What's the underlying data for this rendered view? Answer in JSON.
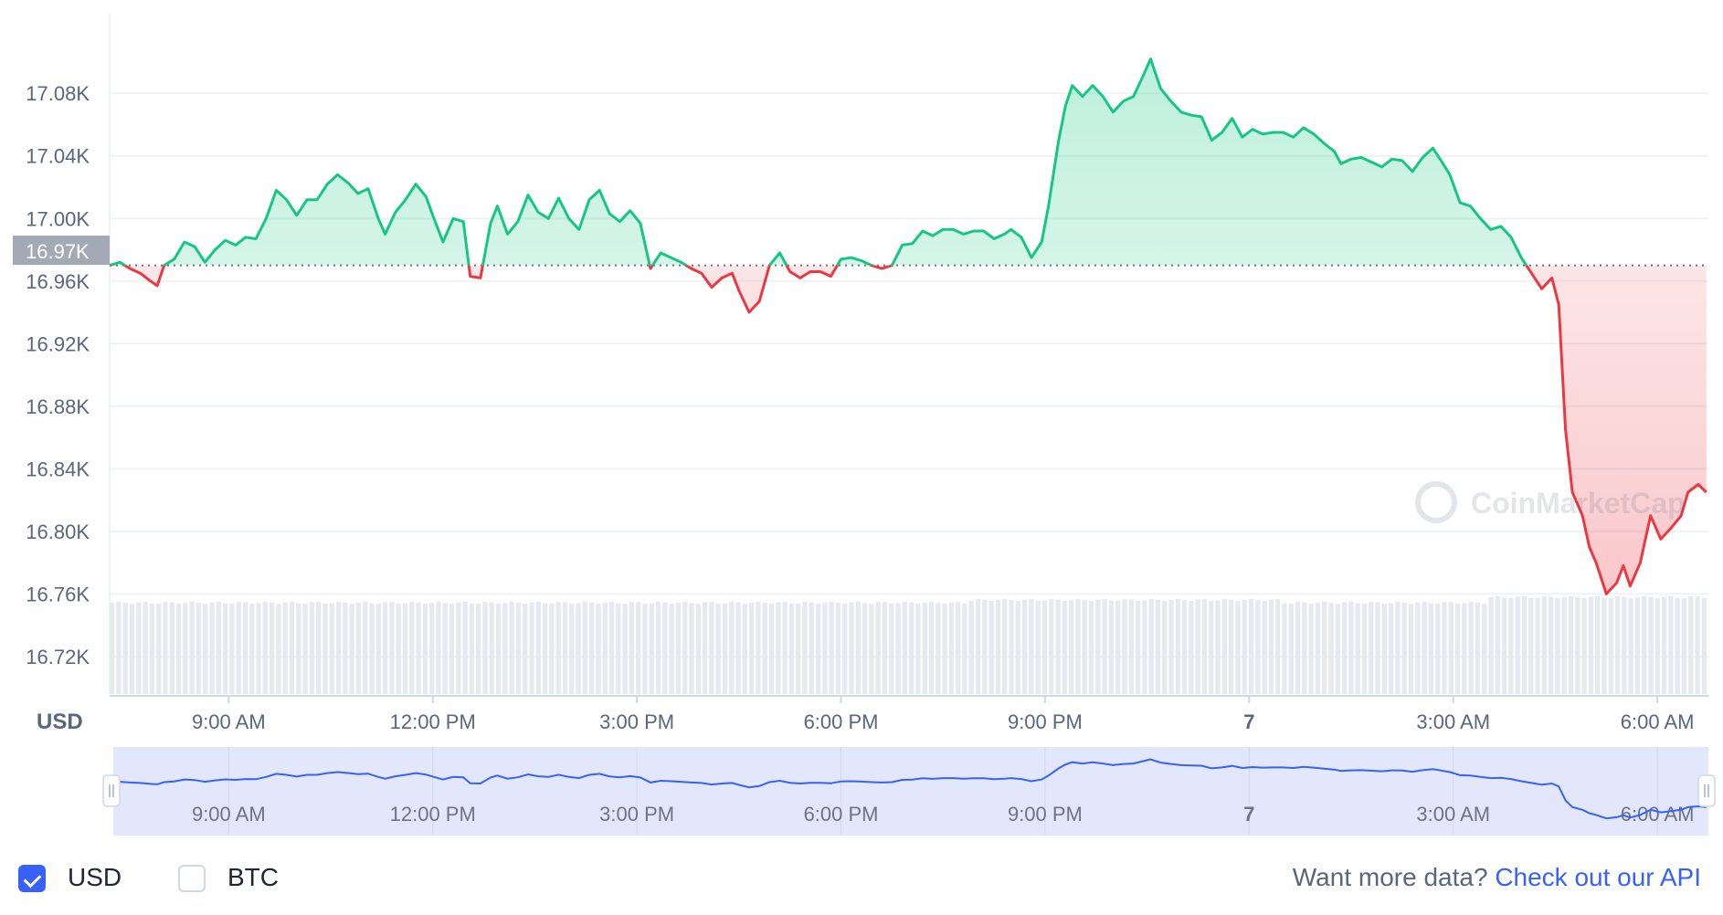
{
  "chart_data": {
    "type": "area",
    "currency_label": "USD",
    "y_ticks": [
      "17.08K",
      "17.04K",
      "17.00K",
      "16.96K",
      "16.92K",
      "16.88K",
      "16.84K",
      "16.80K",
      "16.76K",
      "16.72K"
    ],
    "y_tick_values": [
      17080,
      17040,
      17000,
      16960,
      16920,
      16880,
      16840,
      16800,
      16760,
      16720
    ],
    "ylim": [
      16696,
      17128
    ],
    "x_ticks": [
      "9:00 AM",
      "12:00 PM",
      "3:00 PM",
      "6:00 PM",
      "9:00 PM",
      "7",
      "3:00 AM",
      "6:00 AM"
    ],
    "x_tick_hours": [
      9,
      12,
      15,
      18,
      21,
      24,
      27,
      30
    ],
    "x_tick_bold": [
      false,
      false,
      false,
      false,
      false,
      true,
      false,
      false
    ],
    "xlim_hours": [
      7.25,
      30.75
    ],
    "reference_price": 16970,
    "reference_label": "16.97K",
    "up_color": "#16c784",
    "down_color": "#ea3943",
    "series": [
      {
        "values": [
          [
            7.25,
            16970
          ],
          [
            7.4,
            16972
          ],
          [
            7.55,
            16968
          ],
          [
            7.7,
            16965
          ],
          [
            7.85,
            16960
          ],
          [
            7.95,
            16957
          ],
          [
            8.05,
            16970
          ],
          [
            8.2,
            16974
          ],
          [
            8.35,
            16985
          ],
          [
            8.5,
            16982
          ],
          [
            8.65,
            16972
          ],
          [
            8.8,
            16980
          ],
          [
            8.95,
            16986
          ],
          [
            9.1,
            16983
          ],
          [
            9.25,
            16988
          ],
          [
            9.4,
            16987
          ],
          [
            9.55,
            17000
          ],
          [
            9.7,
            17018
          ],
          [
            9.85,
            17012
          ],
          [
            10.0,
            17002
          ],
          [
            10.15,
            17012
          ],
          [
            10.3,
            17012
          ],
          [
            10.45,
            17022
          ],
          [
            10.6,
            17028
          ],
          [
            10.75,
            17023
          ],
          [
            10.9,
            17016
          ],
          [
            11.05,
            17019
          ],
          [
            11.2,
            17000
          ],
          [
            11.3,
            16990
          ],
          [
            11.45,
            17004
          ],
          [
            11.6,
            17012
          ],
          [
            11.75,
            17022
          ],
          [
            11.9,
            17014
          ],
          [
            12.0,
            17002
          ],
          [
            12.15,
            16985
          ],
          [
            12.3,
            17000
          ],
          [
            12.45,
            16998
          ],
          [
            12.55,
            16963
          ],
          [
            12.7,
            16962
          ],
          [
            12.85,
            16997
          ],
          [
            12.95,
            17008
          ],
          [
            13.1,
            16990
          ],
          [
            13.25,
            16998
          ],
          [
            13.4,
            17015
          ],
          [
            13.55,
            17004
          ],
          [
            13.7,
            17000
          ],
          [
            13.85,
            17013
          ],
          [
            14.0,
            17000
          ],
          [
            14.15,
            16993
          ],
          [
            14.3,
            17012
          ],
          [
            14.45,
            17018
          ],
          [
            14.6,
            17003
          ],
          [
            14.75,
            16998
          ],
          [
            14.9,
            17005
          ],
          [
            15.05,
            16997
          ],
          [
            15.2,
            16968
          ],
          [
            15.35,
            16978
          ],
          [
            15.5,
            16975
          ],
          [
            15.65,
            16972
          ],
          [
            15.8,
            16968
          ],
          [
            15.95,
            16965
          ],
          [
            16.1,
            16956
          ],
          [
            16.25,
            16962
          ],
          [
            16.4,
            16965
          ],
          [
            16.5,
            16954
          ],
          [
            16.65,
            16940
          ],
          [
            16.8,
            16947
          ],
          [
            16.95,
            16970
          ],
          [
            17.1,
            16978
          ],
          [
            17.25,
            16966
          ],
          [
            17.4,
            16962
          ],
          [
            17.55,
            16966
          ],
          [
            17.7,
            16966
          ],
          [
            17.85,
            16963
          ],
          [
            18.0,
            16974
          ],
          [
            18.15,
            16975
          ],
          [
            18.3,
            16973
          ],
          [
            18.45,
            16970
          ],
          [
            18.6,
            16968
          ],
          [
            18.75,
            16970
          ],
          [
            18.9,
            16983
          ],
          [
            19.05,
            16984
          ],
          [
            19.2,
            16992
          ],
          [
            19.35,
            16989
          ],
          [
            19.5,
            16993
          ],
          [
            19.65,
            16993
          ],
          [
            19.8,
            16990
          ],
          [
            19.95,
            16992
          ],
          [
            20.1,
            16992
          ],
          [
            20.25,
            16987
          ],
          [
            20.4,
            16990
          ],
          [
            20.5,
            16993
          ],
          [
            20.65,
            16988
          ],
          [
            20.8,
            16975
          ],
          [
            20.95,
            16985
          ],
          [
            21.05,
            17008
          ],
          [
            21.2,
            17050
          ],
          [
            21.3,
            17072
          ],
          [
            21.4,
            17085
          ],
          [
            21.55,
            17078
          ],
          [
            21.7,
            17085
          ],
          [
            21.85,
            17078
          ],
          [
            22.0,
            17068
          ],
          [
            22.15,
            17075
          ],
          [
            22.3,
            17078
          ],
          [
            22.45,
            17092
          ],
          [
            22.55,
            17102
          ],
          [
            22.7,
            17083
          ],
          [
            22.85,
            17075
          ],
          [
            23.0,
            17068
          ],
          [
            23.15,
            17066
          ],
          [
            23.3,
            17065
          ],
          [
            23.45,
            17050
          ],
          [
            23.6,
            17055
          ],
          [
            23.75,
            17064
          ],
          [
            23.9,
            17052
          ],
          [
            24.05,
            17057
          ],
          [
            24.2,
            17054
          ],
          [
            24.35,
            17055
          ],
          [
            24.5,
            17055
          ],
          [
            24.65,
            17052
          ],
          [
            24.8,
            17058
          ],
          [
            24.95,
            17054
          ],
          [
            25.1,
            17048
          ],
          [
            25.25,
            17043
          ],
          [
            25.35,
            17035
          ],
          [
            25.5,
            17038
          ],
          [
            25.65,
            17039
          ],
          [
            25.8,
            17036
          ],
          [
            25.95,
            17033
          ],
          [
            26.1,
            17038
          ],
          [
            26.25,
            17037
          ],
          [
            26.4,
            17030
          ],
          [
            26.55,
            17039
          ],
          [
            26.7,
            17045
          ],
          [
            26.85,
            17035
          ],
          [
            26.95,
            17028
          ],
          [
            27.1,
            17010
          ],
          [
            27.25,
            17008
          ],
          [
            27.4,
            17000
          ],
          [
            27.55,
            16993
          ],
          [
            27.7,
            16995
          ],
          [
            27.85,
            16988
          ],
          [
            28.0,
            16975
          ],
          [
            28.15,
            16965
          ],
          [
            28.3,
            16955
          ],
          [
            28.45,
            16962
          ],
          [
            28.55,
            16945
          ],
          [
            28.65,
            16865
          ],
          [
            28.75,
            16825
          ],
          [
            28.9,
            16810
          ],
          [
            29.0,
            16790
          ],
          [
            29.1,
            16780
          ],
          [
            29.25,
            16760
          ],
          [
            29.4,
            16767
          ],
          [
            29.5,
            16778
          ],
          [
            29.6,
            16765
          ],
          [
            29.75,
            16780
          ],
          [
            29.9,
            16810
          ],
          [
            30.05,
            16795
          ],
          [
            30.2,
            16802
          ],
          [
            30.35,
            16810
          ],
          [
            30.45,
            16825
          ],
          [
            30.6,
            16830
          ],
          [
            30.72,
            16825
          ]
        ]
      }
    ],
    "volume_bars": 240,
    "navigator": {
      "x_ticks": [
        "9:00 AM",
        "12:00 PM",
        "3:00 PM",
        "6:00 PM",
        "9:00 PM",
        "7",
        "3:00 AM",
        "6:00 AM"
      ]
    },
    "watermark": "CoinMarketCap"
  },
  "footer": {
    "usd_label": "USD",
    "btc_label": "BTC",
    "more_data_text": "Want more data?",
    "api_link_text": "Check out our API"
  }
}
